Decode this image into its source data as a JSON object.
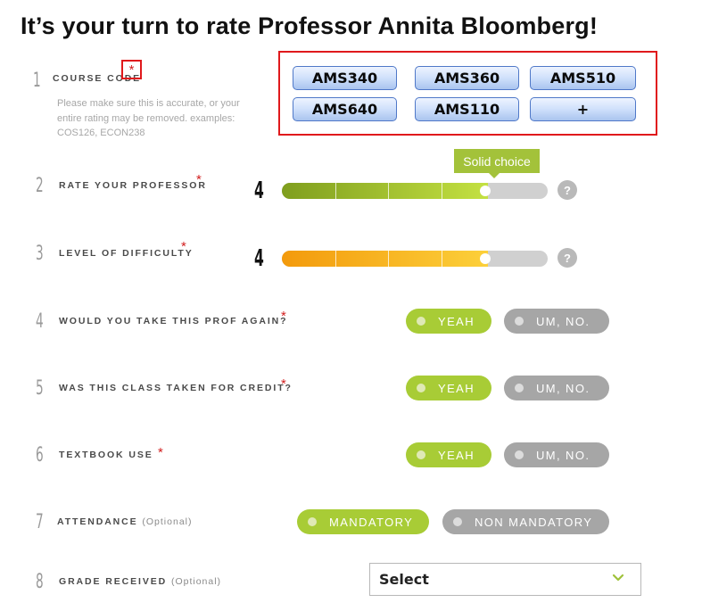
{
  "page_title": "It’s your turn to rate Professor Annita Bloomberg!",
  "required_mark": "*",
  "questions": [
    {
      "number": "1",
      "label": "COURSE CODE",
      "help": "Please make sure this is accurate, or your entire rating may be removed. examples: COS126, ECON238"
    },
    {
      "number": "2",
      "label": "RATE YOUR PROFESSOR",
      "score": "4",
      "tooltip": "Solid choice",
      "value": 4,
      "max": 5
    },
    {
      "number": "3",
      "label": "LEVEL OF DIFFICULTY",
      "score": "4",
      "value": 4,
      "max": 5
    },
    {
      "number": "4",
      "label": "WOULD YOU TAKE THIS PROF AGAIN?",
      "yes": "YEAH",
      "no": "UM, NO."
    },
    {
      "number": "5",
      "label": "WAS THIS CLASS TAKEN FOR CREDIT?",
      "yes": "YEAH",
      "no": "UM, NO."
    },
    {
      "number": "6",
      "label": "TEXTBOOK USE",
      "yes": "YEAH",
      "no": "UM, NO."
    },
    {
      "number": "7",
      "label": "ATTENDANCE",
      "optional": "(Optional)",
      "yes": "MANDATORY",
      "no": "NON MANDATORY"
    },
    {
      "number": "8",
      "label": "GRADE RECEIVED",
      "optional": "(Optional)",
      "select": "Select"
    }
  ],
  "course_buttons": [
    "AMS340",
    "AMS360",
    "AMS510",
    "AMS640",
    "AMS110",
    "+"
  ],
  "help_icon": "?",
  "colors": {
    "quality_fill_start": "#7f9e1e",
    "quality_fill_end": "#c4e142",
    "difficulty_fill_start": "#f39a0c",
    "difficulty_fill_end": "#fcd03a",
    "selected_pill": "#a8cc36",
    "unselected_pill": "#a6a6a6",
    "tooltip": "#a3c23a",
    "highlight_box": "#e0191c",
    "required_star": "#d21f1f"
  },
  "icons": {
    "help": "question-mark-icon",
    "dropdown": "chevron-down-icon",
    "radio": "radio-dot-icon"
  }
}
